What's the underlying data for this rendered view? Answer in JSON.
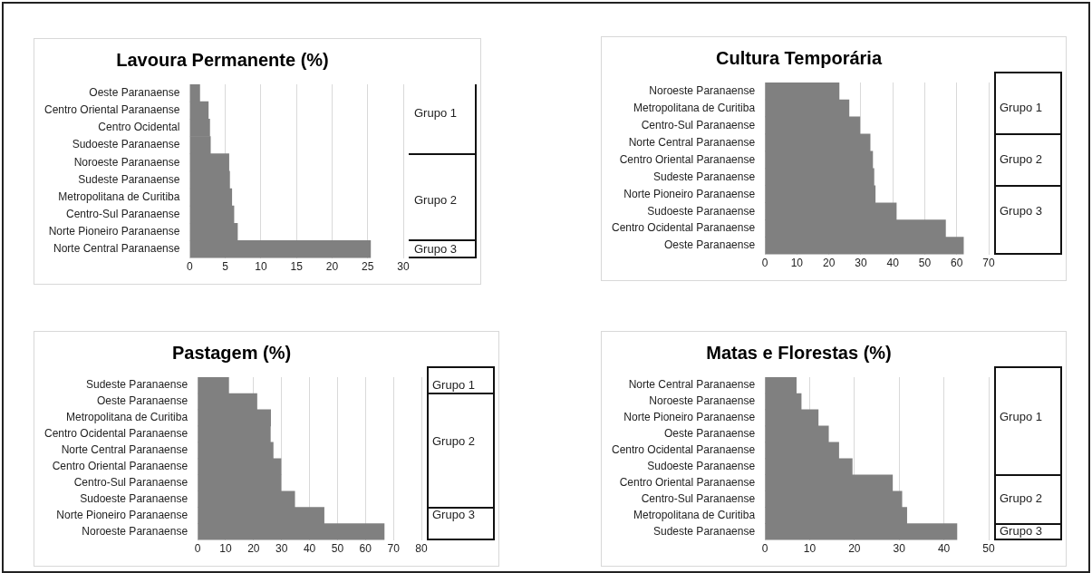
{
  "chart_data": [
    {
      "type": "bar",
      "orientation": "horizontal",
      "title": "Lavoura Permanente (%)",
      "categories": [
        "Oeste Paranaense",
        "Centro Oriental Paranaense",
        "Centro Ocidental",
        "Sudoeste Paranaense",
        "Noroeste Paranaense",
        "Sudeste Paranaense",
        "Metropolitana de Curitiba",
        "Centro-Sul Paranaense",
        "Norte Pioneiro Paranaense",
        "Norte Central Paranaense"
      ],
      "values": [
        1.4,
        2.6,
        2.8,
        2.9,
        5.5,
        5.6,
        5.9,
        6.2,
        6.7,
        25.4
      ],
      "color": "#808080",
      "xlim": [
        0,
        30
      ],
      "xticks": [
        0,
        5,
        10,
        15,
        20,
        25,
        30
      ],
      "grid": "x",
      "legend": false,
      "annotations": [
        "Grupo 1",
        "Grupo 2",
        "Grupo 3"
      ]
    },
    {
      "type": "bar",
      "orientation": "horizontal",
      "title": "Cultura Temporária",
      "categories": [
        "Noroeste Paranaense",
        "Metropolitana de Curitiba",
        "Centro-Sul Paranaense",
        "Norte Central Paranaense",
        "Centro Oriental Paranaense",
        "Sudeste Paranaense",
        "Norte Pioneiro Paranaense",
        "Sudoeste Paranaense",
        "Centro Ocidental Paranaense",
        "Oeste Paranaense"
      ],
      "values": [
        23.2,
        26.3,
        29.7,
        32.9,
        33.7,
        34.1,
        34.5,
        41.1,
        56.5,
        62.1
      ],
      "color": "#808080",
      "xlim": [
        0,
        70
      ],
      "xticks": [
        0,
        10,
        20,
        30,
        40,
        50,
        60,
        70
      ],
      "grid": "x",
      "legend": false,
      "annotations": [
        "Grupo 1",
        "Grupo 2",
        "Grupo 3"
      ]
    },
    {
      "type": "bar",
      "orientation": "horizontal",
      "title": "Pastagem (%)",
      "categories": [
        "Sudeste Paranaense",
        "Oeste Paranaense",
        "Metropolitana de Curitiba",
        "Centro Ocidental Paranaense",
        "Norte Central Paranaense",
        "Centro Oriental Paranaense",
        "Centro-Sul Paranaense",
        "Sudoeste Paranaense",
        "Norte Pioneiro Paranaense",
        "Noroeste Paranaense"
      ],
      "values": [
        11.1,
        21.2,
        26.1,
        26.0,
        27.0,
        29.8,
        29.8,
        34.7,
        45.2,
        66.7
      ],
      "color": "#808080",
      "xlim": [
        0,
        80
      ],
      "xticks": [
        0,
        10,
        20,
        30,
        40,
        50,
        60,
        70,
        80
      ],
      "grid": "x",
      "legend": false,
      "annotations": [
        "Grupo 1",
        "Grupo 2",
        "Grupo 3"
      ]
    },
    {
      "type": "bar",
      "orientation": "horizontal",
      "title": "Matas e Florestas (%)",
      "categories": [
        "Norte Central Paranaense",
        "Noroeste Paranaense",
        "Norte Pioneiro Paranaense",
        "Oeste Paranaense",
        "Centro Ocidental Paranaense",
        "Sudoeste Paranaense",
        "Centro Oriental Paranaense",
        "Centro-Sul Paranaense",
        "Metropolitana de Curitiba",
        "Sudeste Paranaense"
      ],
      "values": [
        7.0,
        8.1,
        11.9,
        14.2,
        16.5,
        19.5,
        28.5,
        30.6,
        31.7,
        42.9
      ],
      "color": "#808080",
      "xlim": [
        0,
        50
      ],
      "xticks": [
        0,
        10,
        20,
        30,
        40,
        50
      ],
      "grid": "x",
      "legend": false,
      "annotations": [
        "Grupo 1",
        "Grupo 2",
        "Grupo 3"
      ]
    }
  ]
}
